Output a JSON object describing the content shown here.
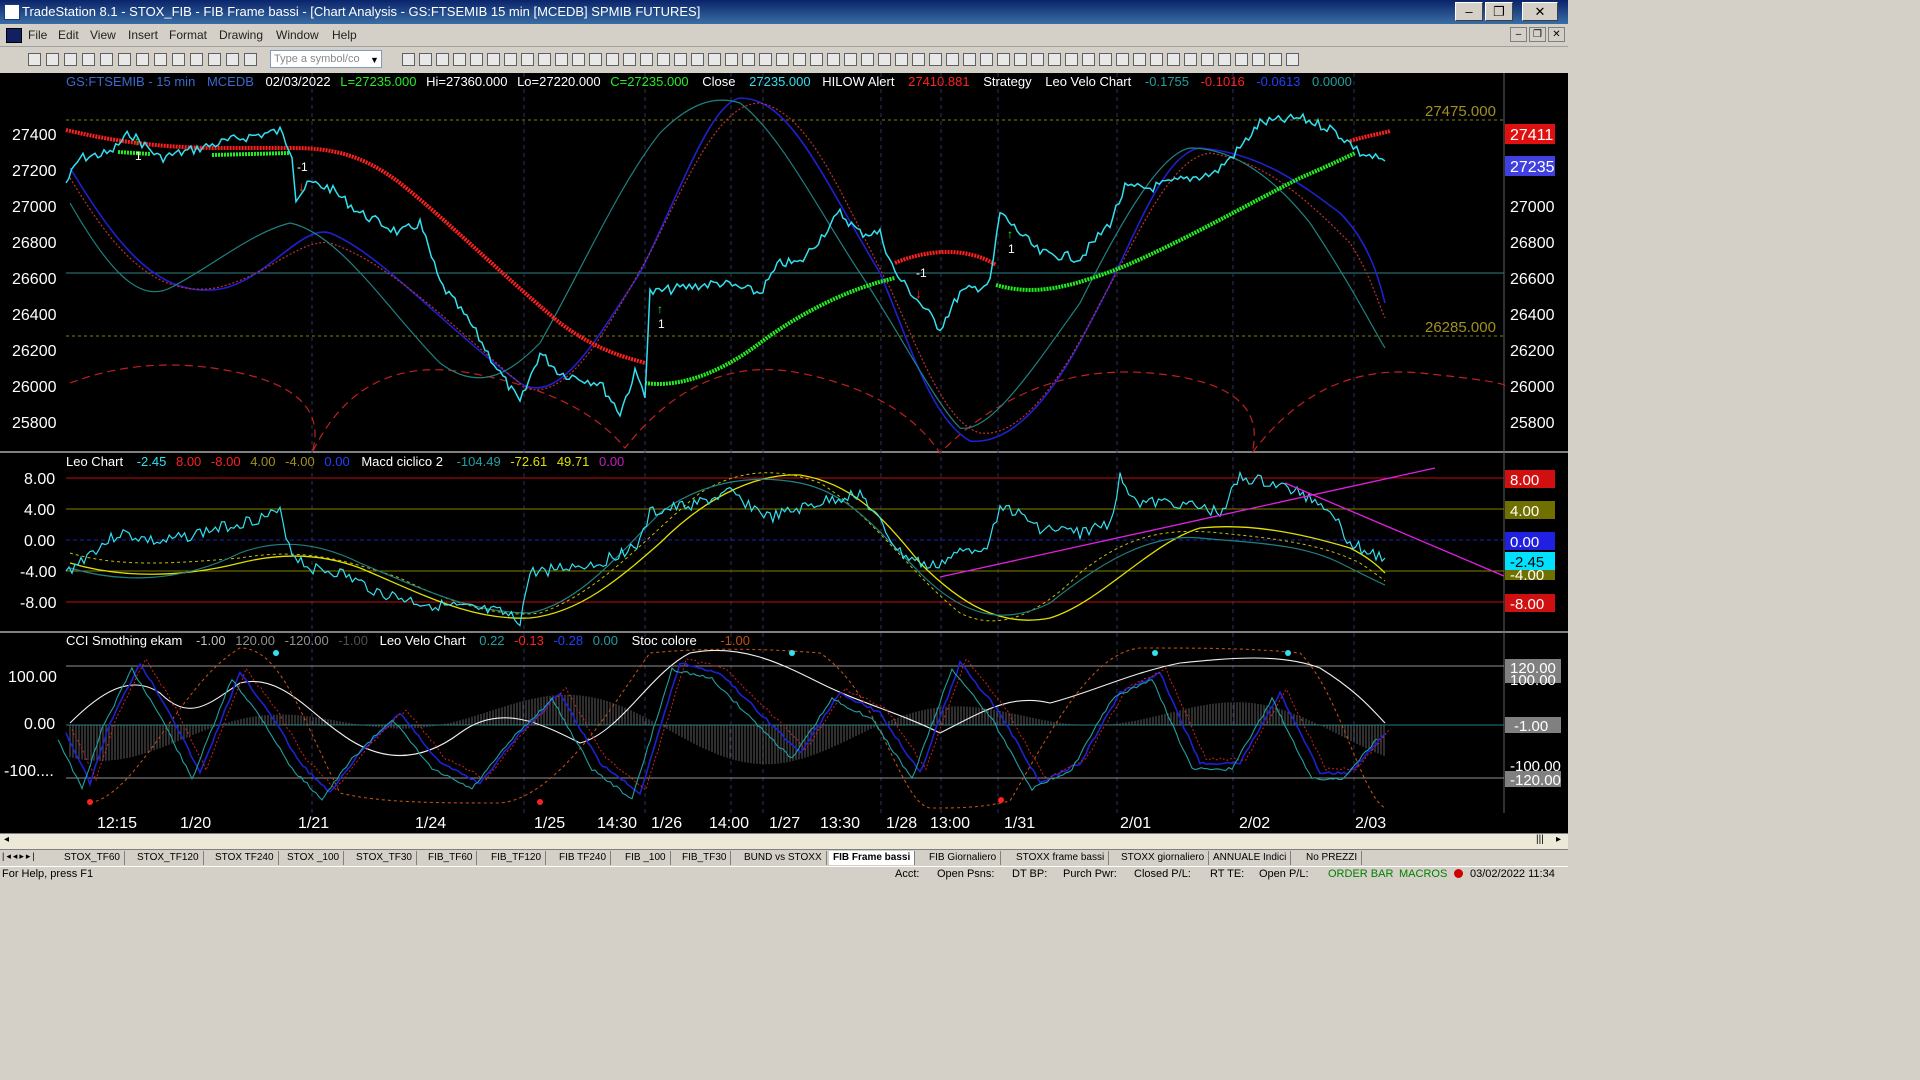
{
  "window": {
    "title": "TradeStation 8.1 - STOX_FIB - FIB Frame bassi - [Chart Analysis - GS:FTSEMIB  15 min  [MCEDB] SPMIB FUTURES]",
    "min": "–",
    "max": "❐",
    "close": "✕"
  },
  "menu": [
    "File",
    "Edit",
    "View",
    "Insert",
    "Format",
    "Drawing",
    "Window",
    "Help"
  ],
  "toolbar": {
    "symbol_placeholder": "Type a symbol/co"
  },
  "chart": {
    "price_header": {
      "symbol": "GS:FTSEMIB - 15 min",
      "source": "MCEDB",
      "date": "02/03/2022",
      "last": "L=27235.000",
      "hi": "Hi=27360.000",
      "lo": "Lo=27220.000",
      "close_eq": "C=27235.000",
      "close_label": "Close",
      "close_val": "27235.000",
      "hilow": "HILOW Alert",
      "hilow_val": "27410.881",
      "strategy": "Strategy",
      "lvc": "Leo Velo Chart",
      "lvc1": "-0.1755",
      "lvc2": "-0.1016",
      "lvc3": "-0.0613",
      "lvc4": "0.0000"
    },
    "price_axis": [
      "27400",
      "27200",
      "27000",
      "26800",
      "26600",
      "26400",
      "26200",
      "26000",
      "25800"
    ],
    "price_levels": {
      "upper": "27475.000",
      "lower": "26285.000",
      "tag_red": "27411",
      "tag_blue": "27235"
    },
    "leo_header": {
      "name": "Leo Chart",
      "v1": "-2.45",
      "v2": "8.00",
      "v3": "-8.00",
      "v4": "4.00",
      "v5": "-4.00",
      "v6": "0.00",
      "macd": "Macd ciclico 2",
      "m1": "-104.49",
      "m2": "-72.61",
      "m3": "49.71",
      "m4": "0.00"
    },
    "leo_axis": [
      "8.00",
      "4.00",
      "0.00",
      "-4.00",
      "-8.00"
    ],
    "leo_tags": [
      "8.00",
      "4.00",
      "0.00",
      "-2.45",
      "-4.00",
      "-8.00"
    ],
    "cci_header": {
      "name": "CCI Smothing ekam",
      "c1": "-1.00",
      "c2": "120.00",
      "c3": "-120.00",
      "c4": "-1.00",
      "lvc": "Leo Velo Chart",
      "l1": "0.22",
      "l2": "-0.13",
      "l3": "-0.28",
      "l4": "0.00",
      "stoc": "Stoc colore",
      "s1": "-1.00"
    },
    "cci_axis": [
      "100.00",
      "0.00",
      "-100...."
    ],
    "cci_tags": [
      "120.00",
      "100.00",
      "-1.00",
      "-100.00",
      "-120.00"
    ],
    "time_axis": [
      "12:15",
      "1/20",
      "1/21",
      "1/24",
      "1/25",
      "14:30",
      "1/26",
      "14:00",
      "1/27",
      "13:30",
      "1/28",
      "13:00",
      "1/31",
      "2/01",
      "2/02",
      "2/03"
    ],
    "markers": {
      "one": "1",
      "minus_one": "-1"
    }
  },
  "tabs": [
    "STOX_TF60",
    "STOX_TF120",
    "STOX TF240",
    "STOX _100",
    "STOX_TF30",
    "FIB_TF60",
    "FIB_TF120",
    "FIB TF240",
    "FIB _100",
    "FIB_TF30",
    "BUND vs STOXX",
    "FIB Frame bassi",
    "FIB Giornaliero",
    "STOXX frame bassi",
    "STOXX giornaliero",
    "ANNUALE Indici",
    "No PREZZI"
  ],
  "status": {
    "help": "For Help, press F1",
    "acct": "Acct:",
    "open_psns": "Open Psns:",
    "dt_bp": "DT BP:",
    "purch_pwr": "Purch Pwr:",
    "closed_pl": "Closed P/L:",
    "rt_te": "RT TE:",
    "open_pl": "Open P/L:",
    "order_bar": "ORDER BAR",
    "macros": "MACROS",
    "datetime": "03/02/2022 11:34"
  },
  "colors": {
    "background": "#000000",
    "price": "#33e0f0",
    "hilow_red": "#ff2020",
    "hilow_green": "#22ee22",
    "yellow": "#f0f000",
    "magenta": "#e020e0",
    "navy": "#2020d0"
  }
}
